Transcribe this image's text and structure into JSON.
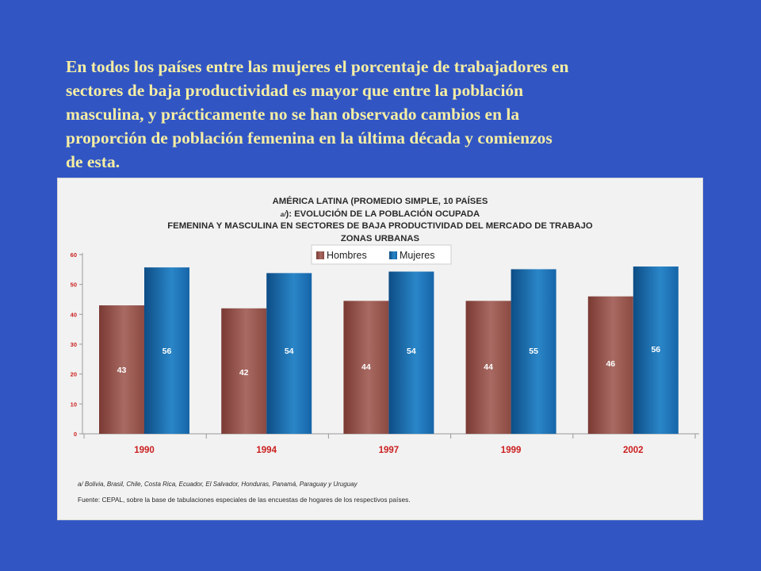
{
  "headline": {
    "lines": [
      "En todos los países entre las mujeres el porcentaje de trabajadores en",
      "sectores de baja productividad es mayor que entre la población",
      "masculina, y prácticamente no se han observado cambios en la",
      "proporción de  población femenina en la última década y comienzos",
      "de esta."
    ]
  },
  "chart_data": {
    "type": "bar",
    "title_lines": [
      "AMÉRICA LATINA (PROMEDIO SIMPLE, 10 PAÍSES ",
      "FEMENINA Y MASCULINA EN SECTORES DE BAJA PRODUCTIVIDAD DEL MERCADO DE TRABAJO",
      "ZONAS URBANAS"
    ],
    "title_note_ref": "a/",
    "title_line1_tail": "): EVOLUCIÓN DE LA POBLACIÓN OCUPADA",
    "categories": [
      "1990",
      "1994",
      "1997",
      "1999",
      "2002"
    ],
    "series": [
      {
        "name": "Hombres",
        "values": [
          43,
          42,
          44,
          44,
          46
        ],
        "plot_values": [
          43,
          42,
          44.5,
          44.5,
          46
        ],
        "color": "#8b4a42"
      },
      {
        "name": "Mujeres",
        "values": [
          56,
          54,
          54,
          55,
          56
        ],
        "plot_values": [
          55.7,
          53.8,
          54.3,
          55.1,
          56
        ],
        "color": "#1665a8"
      }
    ],
    "ylim": [
      0,
      60
    ],
    "yticks": [
      0,
      10,
      20,
      30,
      40,
      50,
      60
    ],
    "legend_position": "top-center",
    "category_label_color": "#cc1f1f",
    "tick_label_color": "#cc1f1f",
    "xlabel": "",
    "ylabel": ""
  },
  "footnote": "a/ Bolivia, Brasil, Chile, Costa Rica, Ecuador, El Salvador, Honduras, Panamá, Paraguay y Uruguay",
  "source": "Fuente: CEPAL, sobre la base de  tabulaciones especiales de las encuestas de hogares de los respectivos países."
}
